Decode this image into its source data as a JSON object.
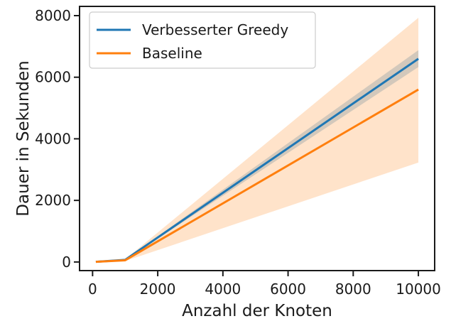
{
  "chart_data": {
    "type": "line",
    "title": "",
    "xlabel": "Anzahl der Knoten",
    "ylabel": "Dauer in Sekunden",
    "xlim": [
      -400,
      10500
    ],
    "ylim": [
      -280,
      8300
    ],
    "xticks": [
      0,
      2000,
      4000,
      6000,
      8000,
      10000
    ],
    "yticks": [
      0,
      2000,
      4000,
      6000,
      8000
    ],
    "grid": false,
    "legend_position": "top-left",
    "series": [
      {
        "name": "Verbesserter Greedy",
        "color": "#1f77b4",
        "x": [
          100,
          1000,
          10000
        ],
        "y": [
          5,
          70,
          6600
        ],
        "band_lower": [
          3,
          60,
          6330
        ],
        "band_upper": [
          8,
          80,
          6880
        ]
      },
      {
        "name": "Baseline",
        "color": "#ff7f0e",
        "x": [
          100,
          1000,
          10000
        ],
        "y": [
          5,
          55,
          5600
        ],
        "band_lower": [
          2,
          30,
          3230
        ],
        "band_upper": [
          10,
          85,
          7930
        ]
      }
    ]
  }
}
